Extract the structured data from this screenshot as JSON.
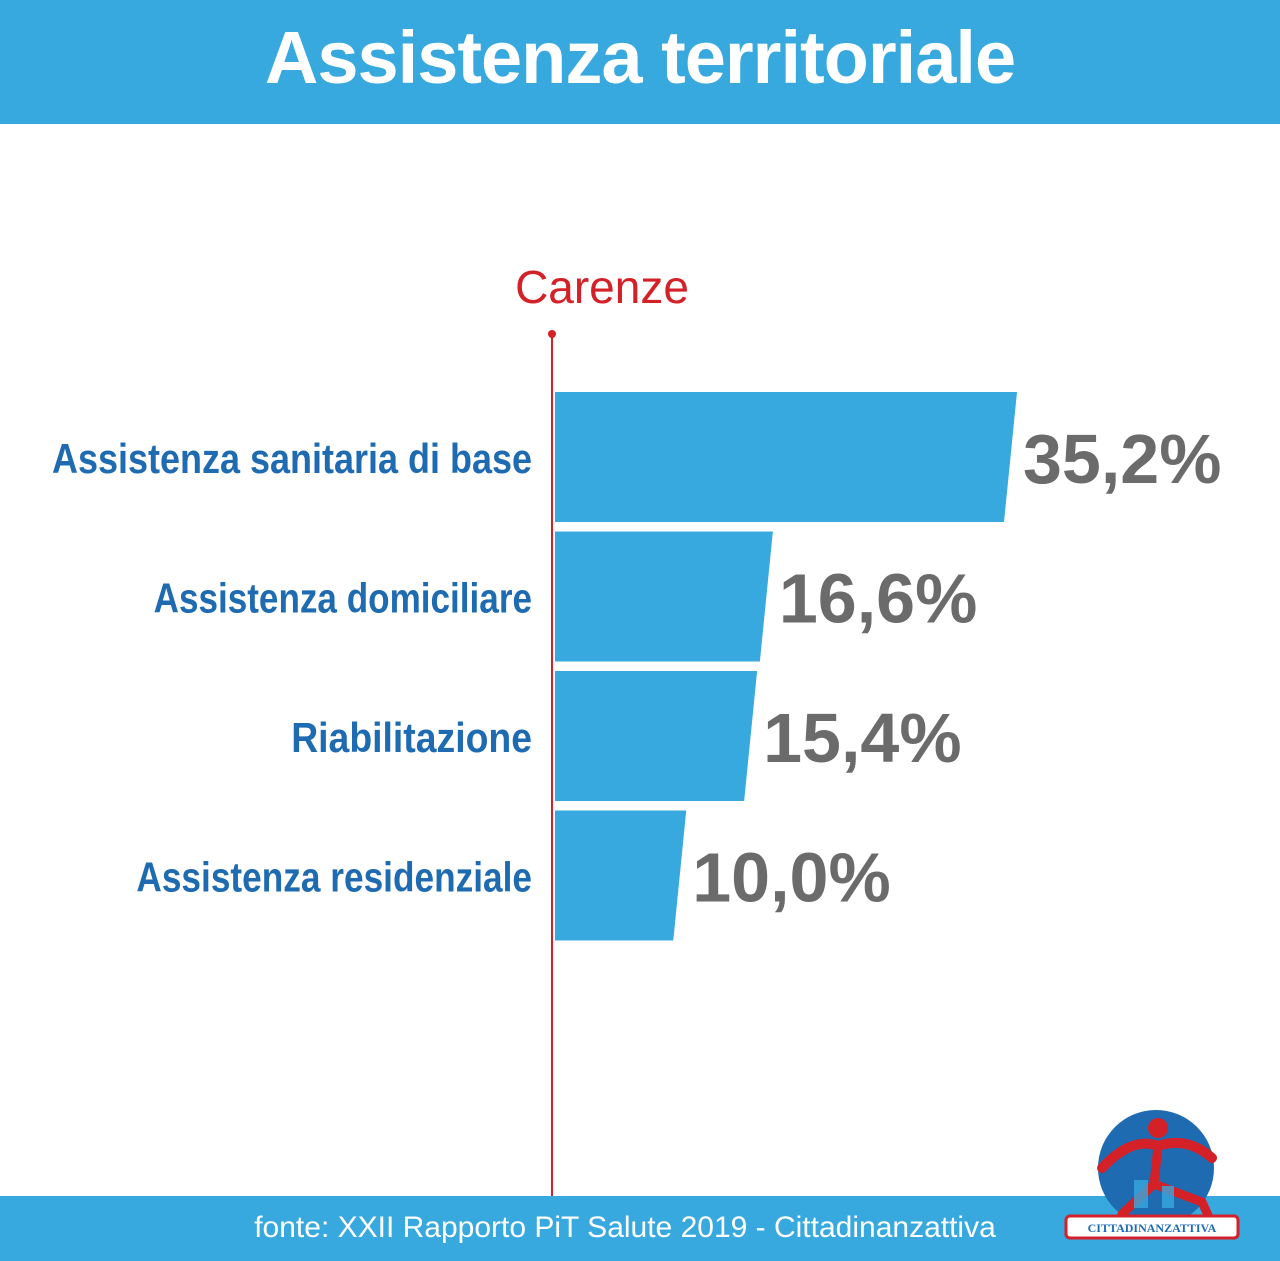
{
  "title": "Assistenza territoriale",
  "source": "fonte: XXII Rapporto PiT Salute 2019 - Cittadinanzattiva",
  "logo_text": "CITTADINANZATTIVA",
  "colors": {
    "bar": "#37a9df",
    "axis": "#d42027",
    "category_label": "#1f6bb2",
    "value_label": "#6b6b6b",
    "banner": "#37a9df"
  },
  "chart_data": {
    "type": "bar",
    "orientation": "horizontal",
    "axis_title": "Carenze",
    "categories": [
      "Assistenza sanitaria di base",
      "Assistenza domiciliare",
      "Riabilitazione",
      "Assistenza residenziale"
    ],
    "values": [
      35.2,
      16.6,
      15.4,
      10.0
    ],
    "value_labels": [
      "35,2%",
      "16,6%",
      "15,4%",
      "10,0%"
    ],
    "unit": "%",
    "grid": false
  }
}
